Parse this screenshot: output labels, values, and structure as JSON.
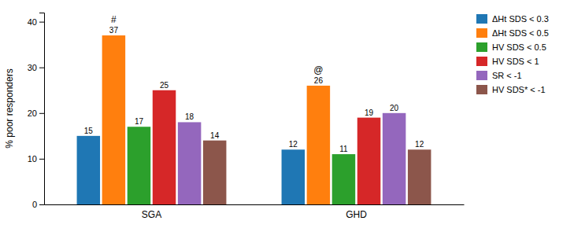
{
  "chart_data": {
    "type": "bar",
    "categories": [
      "SGA",
      "GHD"
    ],
    "series": [
      {
        "name": "ΔHt SDS < 0.3",
        "values": [
          15,
          12
        ]
      },
      {
        "name": "ΔHt SDS < 0.5",
        "values": [
          37,
          26
        ]
      },
      {
        "name": "HV SDS < 0.5",
        "values": [
          17,
          11
        ]
      },
      {
        "name": "HV SDS < 1",
        "values": [
          25,
          19
        ]
      },
      {
        "name": "SR < -1",
        "values": [
          18,
          20
        ]
      },
      {
        "name": "HV SDS* < -1",
        "values": [
          14,
          12
        ]
      }
    ],
    "ylabel": "% poor responders",
    "ylim": [
      0,
      42
    ],
    "yticks": [
      0,
      10,
      20,
      30,
      40
    ],
    "annotations": [
      {
        "text": "#",
        "series": "ΔHt SDS < 0.5",
        "category": "SGA"
      },
      {
        "text": "@",
        "series": "ΔHt SDS < 0.5",
        "category": "GHD"
      }
    ],
    "data_labels": true,
    "grid": false,
    "legend": "upper right"
  }
}
